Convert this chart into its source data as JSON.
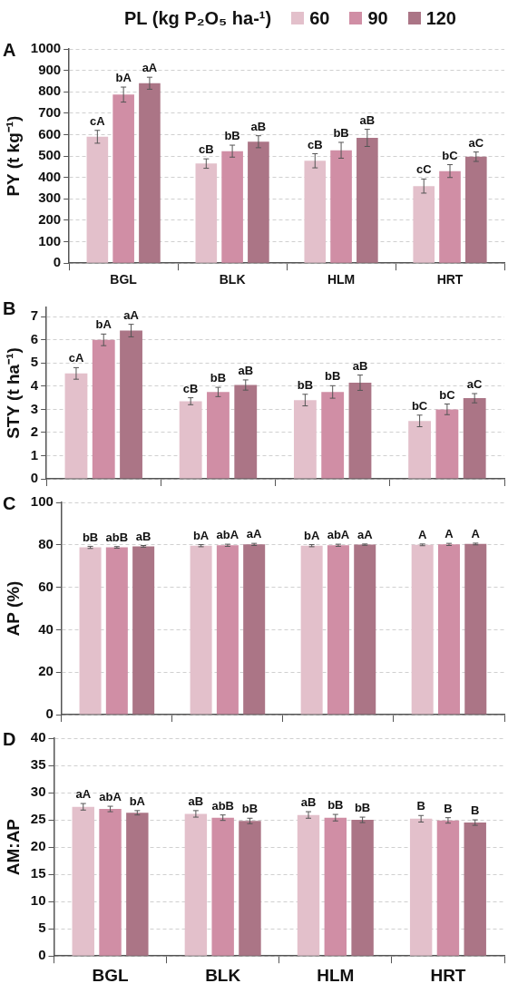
{
  "chart_data": [
    {
      "type": "bar",
      "title": "A",
      "ylabel": "PY (t kg⁻¹)",
      "legend_title": "PL (kg P₂O₅ ha-¹)",
      "legend": "top",
      "categories": [
        "BGL",
        "BLK",
        "HLM",
        "HRT"
      ],
      "ylim": [
        0,
        1000
      ],
      "yticks": [
        0,
        100,
        200,
        300,
        400,
        500,
        600,
        700,
        800,
        900,
        1000
      ],
      "grid": "y",
      "series": [
        {
          "name": "60",
          "color": "#e3c0cb",
          "values": [
            590,
            465,
            478,
            360
          ],
          "errors": [
            30,
            22,
            33,
            33
          ],
          "value_labels": [
            "cA",
            "cB",
            "cB",
            "cC"
          ]
        },
        {
          "name": "90",
          "color": "#d08ea5",
          "values": [
            787,
            523,
            527,
            430
          ],
          "errors": [
            35,
            28,
            37,
            30
          ],
          "value_labels": [
            "bA",
            "bB",
            "bB",
            "bC"
          ]
        },
        {
          "name": "120",
          "color": "#ab7586",
          "values": [
            840,
            567,
            585,
            497
          ],
          "errors": [
            28,
            28,
            40,
            22
          ],
          "value_labels": [
            "aA",
            "aB",
            "aB",
            "aC"
          ]
        }
      ]
    },
    {
      "type": "bar",
      "title": "B",
      "ylabel": "STY (t ha⁻¹)",
      "categories": [
        null,
        null,
        null,
        null
      ],
      "ylim": [
        0,
        7.4
      ],
      "yticks": [
        0,
        1,
        2,
        3,
        4,
        5,
        6,
        7
      ],
      "grid": "y",
      "tick_labels": "y",
      "series": [
        {
          "color": "#e3c0cb",
          "values": [
            4.55,
            3.35,
            3.4,
            2.5
          ],
          "errors": [
            0.25,
            0.15,
            0.25,
            0.25
          ],
          "value_labels": [
            "cA",
            "cB",
            "bB",
            "bC"
          ]
        },
        {
          "color": "#d08ea5",
          "values": [
            6.0,
            3.75,
            3.75,
            3.0
          ],
          "errors": [
            0.25,
            0.2,
            0.27,
            0.23
          ],
          "value_labels": [
            "bA",
            "bB",
            "bB",
            "bC"
          ]
        },
        {
          "color": "#ab7586",
          "values": [
            6.4,
            4.05,
            4.15,
            3.48
          ],
          "errors": [
            0.27,
            0.22,
            0.33,
            0.2
          ],
          "value_labels": [
            "aA",
            "aB",
            "aB",
            "aC"
          ]
        }
      ]
    },
    {
      "type": "bar",
      "title": "C",
      "ylabel": "AP (%)",
      "categories": [
        null,
        null,
        null,
        null
      ],
      "ylim": [
        0,
        100
      ],
      "yticks": [
        0,
        20,
        40,
        60,
        80,
        100
      ],
      "grid": "y",
      "tick_labels": "y",
      "series": [
        {
          "color": "#e3c0cb",
          "values": [
            78.8,
            79.6,
            79.6,
            80.0
          ],
          "errors": [
            0.5,
            0.5,
            0.5,
            0.4
          ],
          "value_labels": [
            "bB",
            "bA",
            "bA",
            "A"
          ]
        },
        {
          "color": "#d08ea5",
          "values": [
            78.8,
            79.8,
            79.8,
            80.2
          ],
          "errors": [
            0.4,
            0.5,
            0.5,
            0.5
          ],
          "value_labels": [
            "abB",
            "abA",
            "abA",
            "A"
          ]
        },
        {
          "color": "#ab7586",
          "values": [
            79.3,
            80.2,
            80.1,
            80.4
          ],
          "errors": [
            0.4,
            0.5,
            0.3,
            0.4
          ],
          "value_labels": [
            "aB",
            "aA",
            "aA",
            "A"
          ]
        }
      ]
    },
    {
      "type": "bar",
      "title": "D",
      "ylabel": "AM:AP",
      "categories": [
        "BGL",
        "BLK",
        "HLM",
        "HRT"
      ],
      "ylim": [
        0,
        40
      ],
      "yticks": [
        0,
        5,
        10,
        15,
        20,
        25,
        30,
        35,
        40
      ],
      "grid": "y",
      "series": [
        {
          "color": "#e3c0cb",
          "values": [
            27.4,
            26.1,
            25.9,
            25.2
          ],
          "errors": [
            0.6,
            0.6,
            0.6,
            0.6
          ],
          "value_labels": [
            "aA",
            "aB",
            "aB",
            "B"
          ]
        },
        {
          "color": "#d08ea5",
          "values": [
            27.0,
            25.4,
            25.4,
            24.9
          ],
          "errors": [
            0.5,
            0.5,
            0.6,
            0.5
          ],
          "value_labels": [
            "abA",
            "abB",
            "bB",
            "B"
          ]
        },
        {
          "color": "#ab7586",
          "values": [
            26.3,
            24.8,
            25.0,
            24.5
          ],
          "errors": [
            0.4,
            0.5,
            0.5,
            0.5
          ],
          "value_labels": [
            "bA",
            "bB",
            "bB",
            "B"
          ]
        }
      ]
    }
  ]
}
